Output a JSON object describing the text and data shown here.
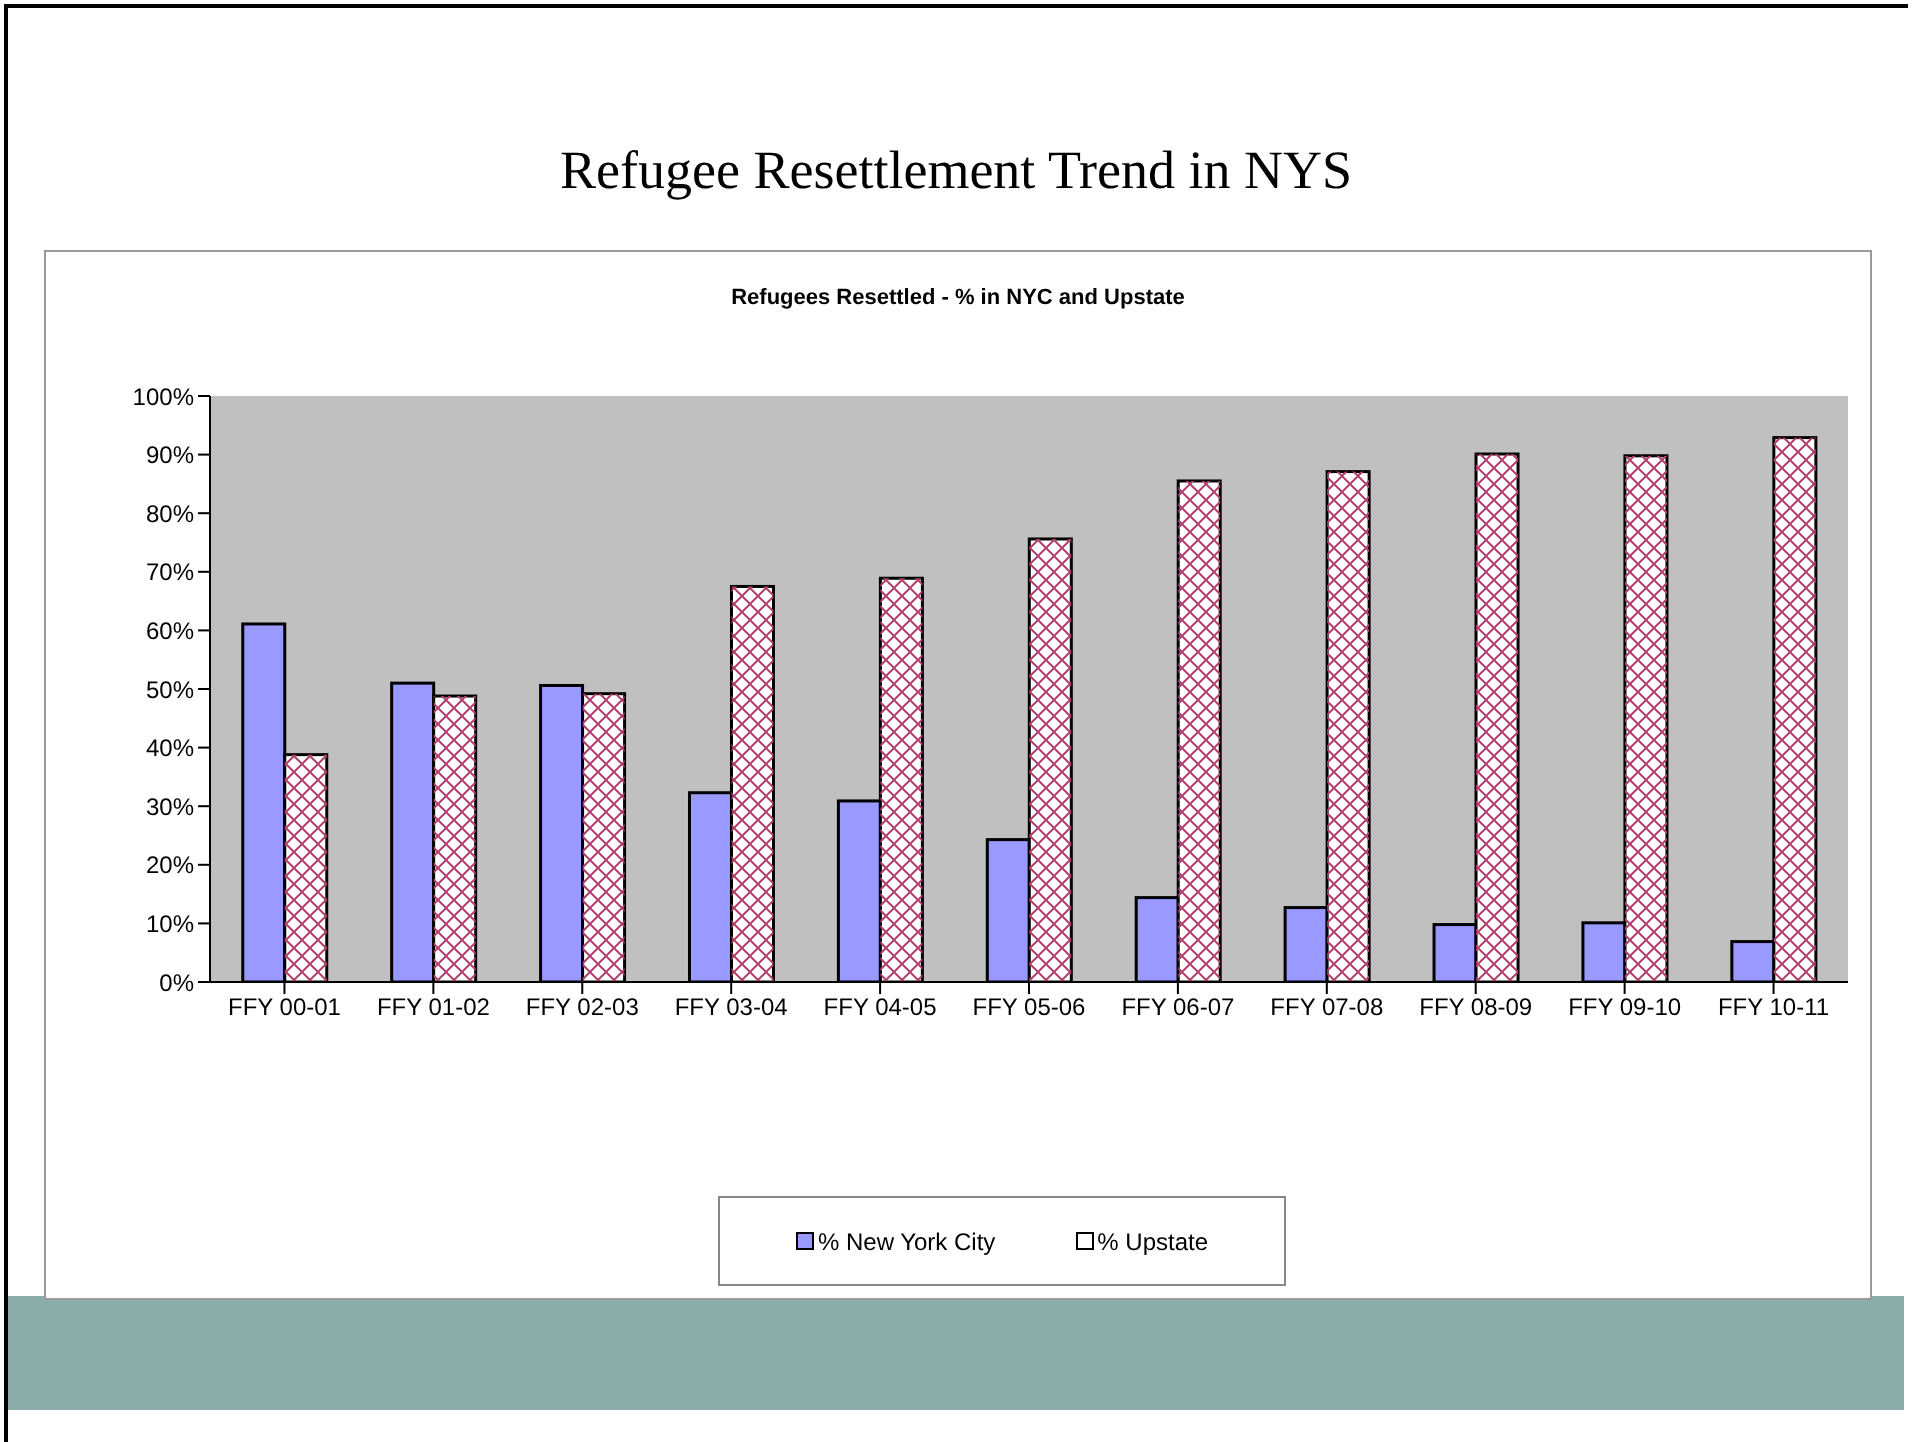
{
  "chart_data": {
    "type": "bar",
    "title": "Refugee Resettlement Trend in NYS",
    "subtitle": "Refugees Resettled - % in NYC and Upstate",
    "categories": [
      "FFY 00-01",
      "FFY 01-02",
      "FFY 02-03",
      "FFY 03-04",
      "FFY 04-05",
      "FFY 05-06",
      "FFY 06-07",
      "FFY 07-08",
      "FFY 08-09",
      "FFY 09-10",
      "FFY 10-11"
    ],
    "series": [
      {
        "name": "% New York City",
        "color": "#9999ff",
        "values": [
          61.1,
          51.0,
          50.6,
          32.3,
          30.9,
          24.3,
          14.4,
          12.7,
          9.8,
          10.1,
          6.9
        ]
      },
      {
        "name": "% Upstate",
        "color": "#ffffff",
        "values": [
          38.8,
          48.8,
          49.2,
          67.5,
          68.9,
          75.6,
          85.5,
          87.1,
          90.1,
          89.8,
          92.9
        ]
      }
    ],
    "ylim": [
      0,
      100
    ],
    "yticks": [
      {
        "value": 0,
        "label": "0%"
      },
      {
        "value": 10,
        "label": "10%"
      },
      {
        "value": 20,
        "label": "20%"
      },
      {
        "value": 30,
        "label": "30%"
      },
      {
        "value": 40,
        "label": "40%"
      },
      {
        "value": 50,
        "label": "50%"
      },
      {
        "value": 60,
        "label": "60%"
      },
      {
        "value": 70,
        "label": "70%"
      },
      {
        "value": 80,
        "label": "80%"
      },
      {
        "value": 90,
        "label": "90%"
      },
      {
        "value": 100,
        "label": "100%"
      }
    ],
    "grid": false,
    "legend": "bottom"
  }
}
